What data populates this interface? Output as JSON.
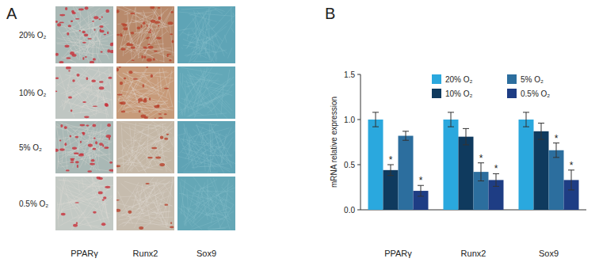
{
  "panel_a": {
    "label": "A",
    "rows": [
      "20% O₂",
      "10% O₂",
      "5% O₂",
      "0.5% O₂"
    ],
    "columns": [
      "PPARγ",
      "Runx2",
      "Sox9"
    ]
  },
  "chart_data": {
    "type": "bar",
    "panel_label": "B",
    "y_label": "mRNA relative expression",
    "categories": [
      "PPARγ",
      "Runx2",
      "Sox9"
    ],
    "series": [
      {
        "name": "20% O₂",
        "color": "#2aa8de",
        "values": [
          1.0,
          1.0,
          1.0
        ],
        "errors": [
          0.08,
          0.08,
          0.08
        ],
        "annotations": [
          null,
          null,
          null
        ]
      },
      {
        "name": "10% O₂",
        "color": "#0f3a5e",
        "values": [
          0.44,
          0.81,
          0.87
        ],
        "errors": [
          0.06,
          0.09,
          0.09
        ],
        "annotations": [
          "*",
          null,
          null
        ]
      },
      {
        "name": "5% O₂",
        "color": "#2c6e9e",
        "values": [
          0.82,
          0.42,
          0.66
        ],
        "errors": [
          0.05,
          0.1,
          0.08
        ],
        "annotations": [
          null,
          "*",
          "*"
        ]
      },
      {
        "name": "0.5% O₂",
        "color": "#1e3d84",
        "values": [
          0.21,
          0.33,
          0.33
        ],
        "errors": [
          0.06,
          0.07,
          0.11
        ],
        "annotations": [
          "*",
          "*",
          "*"
        ]
      }
    ],
    "ylim": [
      0,
      1.5
    ],
    "yticks": [
      {
        "value": 0,
        "label": "0.0"
      },
      0.5,
      {
        "value": 1,
        "label": "1.0"
      },
      1.5
    ],
    "grid": false,
    "legend": "top"
  }
}
